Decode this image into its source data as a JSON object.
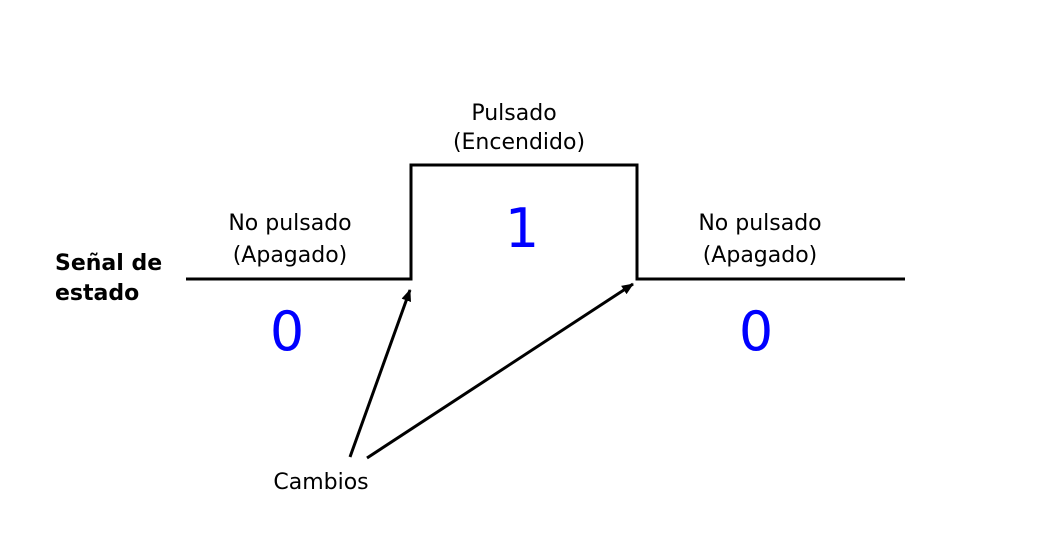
{
  "signal_label": {
    "line1": "Señal de",
    "line2": "estado"
  },
  "states": [
    {
      "line1": "No pulsado",
      "line2": "(Apagado)",
      "value": "0"
    },
    {
      "line1": "Pulsado",
      "line2": "(Encendido)",
      "value": "1"
    },
    {
      "line1": "No pulsado",
      "line2": "(Apagado)",
      "value": "0"
    }
  ],
  "changes_label": "Cambios",
  "colors": {
    "signal": "#000000",
    "value": "#0000ff"
  }
}
